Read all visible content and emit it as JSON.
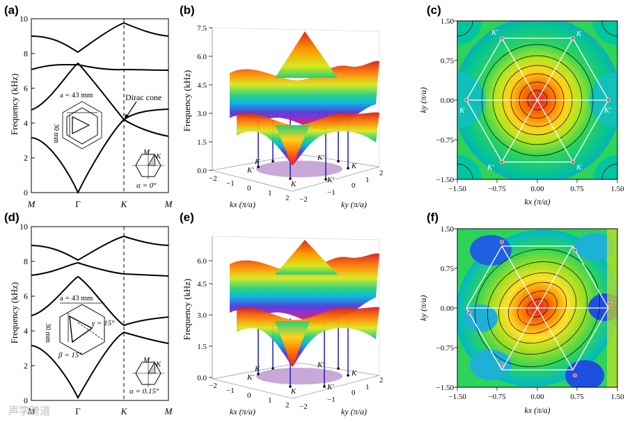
{
  "panels": {
    "a": "(a)",
    "b": "(b)",
    "c": "(c)",
    "d": "(d)",
    "e": "(e)",
    "f": "(f)"
  },
  "band": {
    "ylabel": "Frequency (kHz)",
    "yticks": [
      "0",
      "2",
      "4",
      "6",
      "8",
      "10"
    ],
    "xticks": [
      "M",
      "Γ",
      "K",
      "M"
    ],
    "dirac_label": "Dirac cone",
    "a_top": {
      "lattice": "a = 43 mm",
      "side": "30 mm",
      "alpha": "α = 0°",
      "M": "M",
      "K": "K"
    },
    "d_bot": {
      "lattice": "a = 43 mm",
      "side": "30 mm",
      "gamma": "γ = 15°",
      "beta": "β = 15°",
      "alpha": "α = 0.15°",
      "M": "M",
      "K": "K"
    }
  },
  "surface3d": {
    "zlabel": "Frequency (kHz)",
    "zticks_b": [
      "0.0",
      "1.5",
      "3.0",
      "4.5",
      "6.0",
      "7.5"
    ],
    "zticks_e": [
      "0.0",
      "1.5",
      "3.0",
      "4.5",
      "6.0"
    ],
    "kx_ticks": [
      "−2",
      "−1",
      "0",
      "1",
      "2"
    ],
    "ky_ticks": [
      "−2",
      "−1",
      "0",
      "1",
      "2"
    ],
    "kx_label": "kx (π/a)",
    "ky_label": "ky (π/a)",
    "points": [
      "K",
      "K′",
      "K",
      "K′",
      "K",
      "K′"
    ]
  },
  "contour": {
    "ticks": [
      "−1.50",
      "−0.75",
      "0.00",
      "0.75",
      "1.50"
    ],
    "xlabel": "kx (π/a)",
    "ylabel": "ky (π/a)",
    "corner_labels": {
      "tl": "K′",
      "tr": "K",
      "l": "K",
      "r": "K′",
      "bl": "K′",
      "br": "K"
    }
  },
  "watermark": "声学跨道",
  "colors": {
    "hot": "#e31a1c",
    "cold": "#1f2bd6",
    "line": "#000000",
    "hex": "#ffffff"
  }
}
